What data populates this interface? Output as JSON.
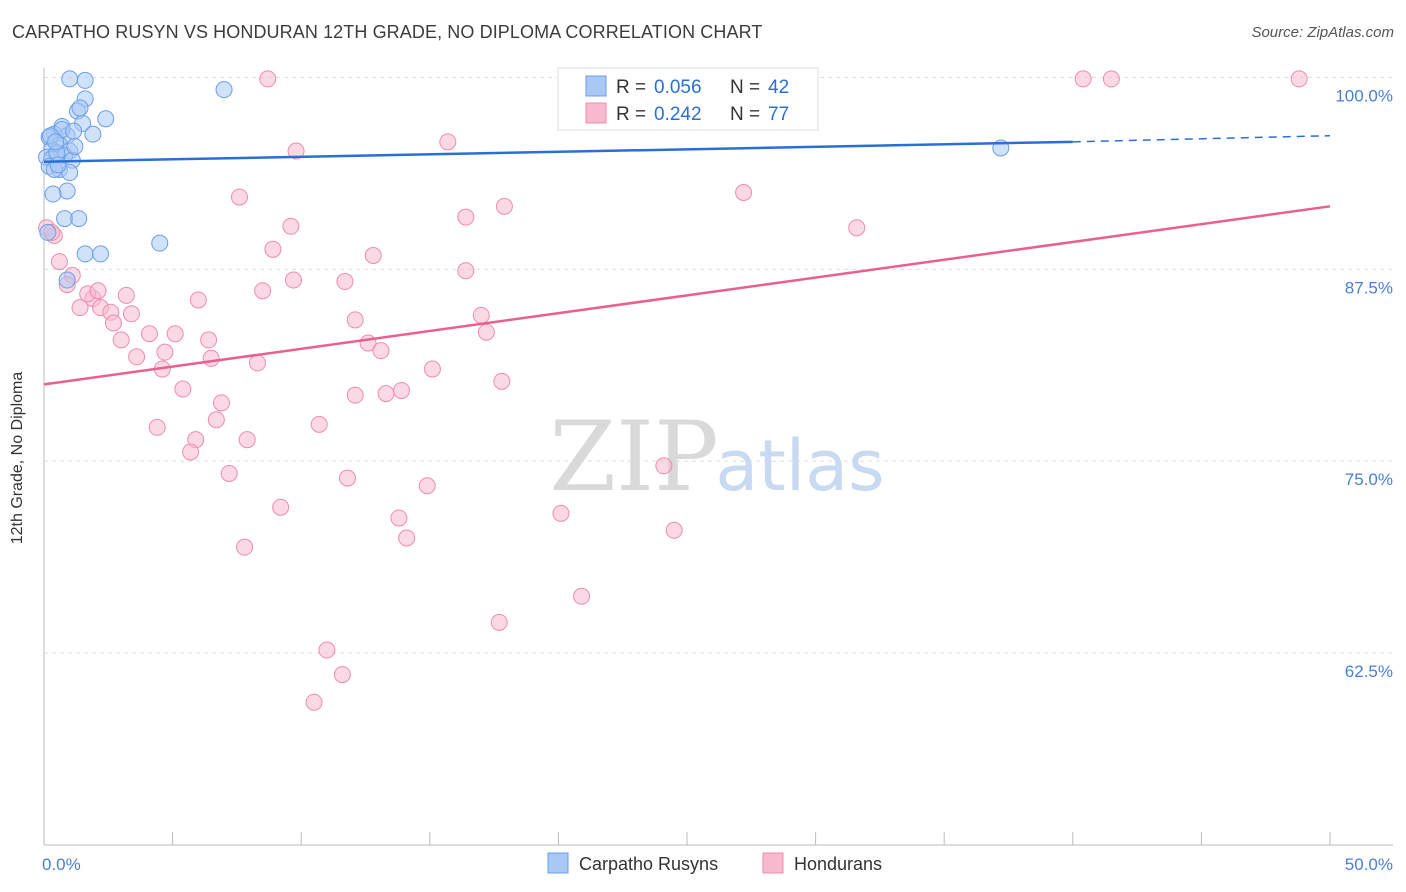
{
  "header": {
    "title": "CARPATHO RUSYN VS HONDURAN 12TH GRADE, NO DIPLOMA CORRELATION CHART",
    "source": "Source: ZipAtlas.com"
  },
  "watermark": {
    "zip": "ZIP",
    "atlas": "atlas"
  },
  "legend": {
    "r_label": "R =",
    "n_label": "N =",
    "entries": [
      {
        "r": "0.056",
        "n": "42",
        "color": "#a9c8f5"
      },
      {
        "r": "0.242",
        "n": "77",
        "color": "#f7b9cd"
      }
    ]
  },
  "chart_data": {
    "type": "scatter",
    "title": "CARPATHO RUSYN VS HONDURAN 12TH GRADE, NO DIPLOMA CORRELATION CHART",
    "xlabel": "",
    "ylabel": "12th Grade, No Diploma",
    "xlim": [
      0,
      50
    ],
    "ylim": [
      50,
      101
    ],
    "x_tick_labels": [
      "0.0%",
      "50.0%"
    ],
    "y_ticks": [
      62.5,
      75.0,
      87.5,
      100.0
    ],
    "y_tick_labels": [
      "62.5%",
      "75.0%",
      "87.5%",
      "100.0%"
    ],
    "grid": true,
    "legend_position": "top-center",
    "series": [
      {
        "name": "Carpatho Rusyns",
        "color": "#6a9ee8",
        "fill": "#a9c8f5",
        "line_color": "#2a6fd6",
        "trend": {
          "x": [
            0,
            40
          ],
          "y": [
            94.5,
            95.8
          ],
          "dashed_x": [
            40,
            50
          ],
          "dashed_y": [
            95.8,
            96.2
          ]
        },
        "points": [
          [
            1.0,
            99.9
          ],
          [
            1.6,
            99.8
          ],
          [
            7.0,
            99.2
          ],
          [
            1.6,
            98.6
          ],
          [
            1.3,
            97.8
          ],
          [
            1.5,
            97.0
          ],
          [
            2.4,
            97.3
          ],
          [
            0.7,
            96.8
          ],
          [
            0.4,
            96.3
          ],
          [
            0.2,
            96.1
          ],
          [
            0.9,
            96.2
          ],
          [
            1.9,
            96.3
          ],
          [
            0.6,
            95.6
          ],
          [
            0.3,
            95.3
          ],
          [
            1.0,
            95.2
          ],
          [
            0.5,
            95.0
          ],
          [
            0.8,
            94.9
          ],
          [
            0.1,
            94.8
          ],
          [
            0.3,
            94.7
          ],
          [
            1.1,
            94.6
          ],
          [
            0.2,
            94.2
          ],
          [
            0.6,
            94.0
          ],
          [
            0.4,
            94.0
          ],
          [
            1.0,
            93.8
          ],
          [
            0.9,
            92.6
          ],
          [
            0.35,
            92.4
          ],
          [
            0.8,
            90.8
          ],
          [
            1.35,
            90.8
          ],
          [
            0.15,
            89.9
          ],
          [
            4.5,
            89.2
          ],
          [
            1.6,
            88.5
          ],
          [
            2.2,
            88.5
          ],
          [
            0.9,
            86.8
          ],
          [
            37.2,
            95.4
          ],
          [
            0.5,
            95.1
          ],
          [
            0.7,
            96.6
          ],
          [
            1.2,
            95.5
          ],
          [
            0.25,
            96.2
          ],
          [
            0.55,
            94.3
          ],
          [
            1.15,
            96.5
          ],
          [
            1.4,
            98.0
          ],
          [
            0.45,
            95.8
          ]
        ]
      },
      {
        "name": "Hondurans",
        "color": "#f08cab",
        "fill": "#f7b9cd",
        "line_color": "#e8608c",
        "trend": {
          "x": [
            0,
            50
          ],
          "y": [
            80.0,
            91.6
          ]
        },
        "points": [
          [
            8.7,
            99.9
          ],
          [
            29.7,
            99.9
          ],
          [
            40.4,
            99.9
          ],
          [
            41.5,
            99.9
          ],
          [
            48.8,
            99.9
          ],
          [
            15.7,
            95.8
          ],
          [
            9.8,
            95.2
          ],
          [
            27.2,
            92.5
          ],
          [
            7.6,
            92.2
          ],
          [
            17.9,
            91.6
          ],
          [
            16.4,
            90.9
          ],
          [
            9.6,
            90.3
          ],
          [
            31.6,
            90.2
          ],
          [
            0.1,
            90.2
          ],
          [
            0.4,
            89.7
          ],
          [
            8.9,
            88.8
          ],
          [
            12.8,
            88.4
          ],
          [
            0.6,
            88.0
          ],
          [
            16.4,
            87.4
          ],
          [
            1.1,
            87.1
          ],
          [
            9.7,
            86.8
          ],
          [
            11.7,
            86.7
          ],
          [
            0.9,
            86.5
          ],
          [
            8.5,
            86.1
          ],
          [
            3.2,
            85.8
          ],
          [
            6.0,
            85.5
          ],
          [
            1.9,
            85.6
          ],
          [
            1.4,
            85.0
          ],
          [
            2.2,
            85.0
          ],
          [
            2.6,
            84.7
          ],
          [
            17.0,
            84.5
          ],
          [
            3.4,
            84.6
          ],
          [
            12.1,
            84.2
          ],
          [
            2.7,
            84.0
          ],
          [
            4.1,
            83.3
          ],
          [
            5.1,
            83.3
          ],
          [
            17.2,
            83.4
          ],
          [
            3.0,
            82.9
          ],
          [
            6.4,
            82.9
          ],
          [
            12.6,
            82.7
          ],
          [
            13.1,
            82.2
          ],
          [
            4.7,
            82.1
          ],
          [
            3.6,
            81.8
          ],
          [
            6.5,
            81.7
          ],
          [
            8.3,
            81.4
          ],
          [
            15.1,
            81.0
          ],
          [
            4.6,
            81.0
          ],
          [
            17.8,
            80.2
          ],
          [
            5.4,
            79.7
          ],
          [
            13.3,
            79.4
          ],
          [
            13.9,
            79.6
          ],
          [
            12.1,
            79.3
          ],
          [
            6.9,
            78.8
          ],
          [
            6.7,
            77.7
          ],
          [
            10.7,
            77.4
          ],
          [
            4.4,
            77.2
          ],
          [
            5.9,
            76.4
          ],
          [
            7.9,
            76.4
          ],
          [
            5.7,
            75.6
          ],
          [
            24.1,
            74.7
          ],
          [
            7.2,
            74.2
          ],
          [
            11.8,
            73.9
          ],
          [
            14.9,
            73.4
          ],
          [
            9.2,
            72.0
          ],
          [
            20.1,
            71.6
          ],
          [
            13.8,
            71.3
          ],
          [
            24.5,
            70.5
          ],
          [
            14.1,
            70.0
          ],
          [
            7.8,
            69.4
          ],
          [
            20.9,
            66.2
          ],
          [
            17.7,
            64.5
          ],
          [
            11.0,
            62.7
          ],
          [
            11.6,
            61.1
          ],
          [
            10.5,
            59.3
          ],
          [
            0.3,
            89.9
          ],
          [
            1.7,
            85.9
          ],
          [
            2.1,
            86.1
          ]
        ]
      }
    ]
  },
  "bottom_legend": {
    "items": [
      {
        "label": "Carpatho Rusyns",
        "color": "#a9c8f5",
        "stroke": "#6a9ee8"
      },
      {
        "label": "Hondurans",
        "color": "#f7b9cd",
        "stroke": "#f08cab"
      }
    ]
  }
}
